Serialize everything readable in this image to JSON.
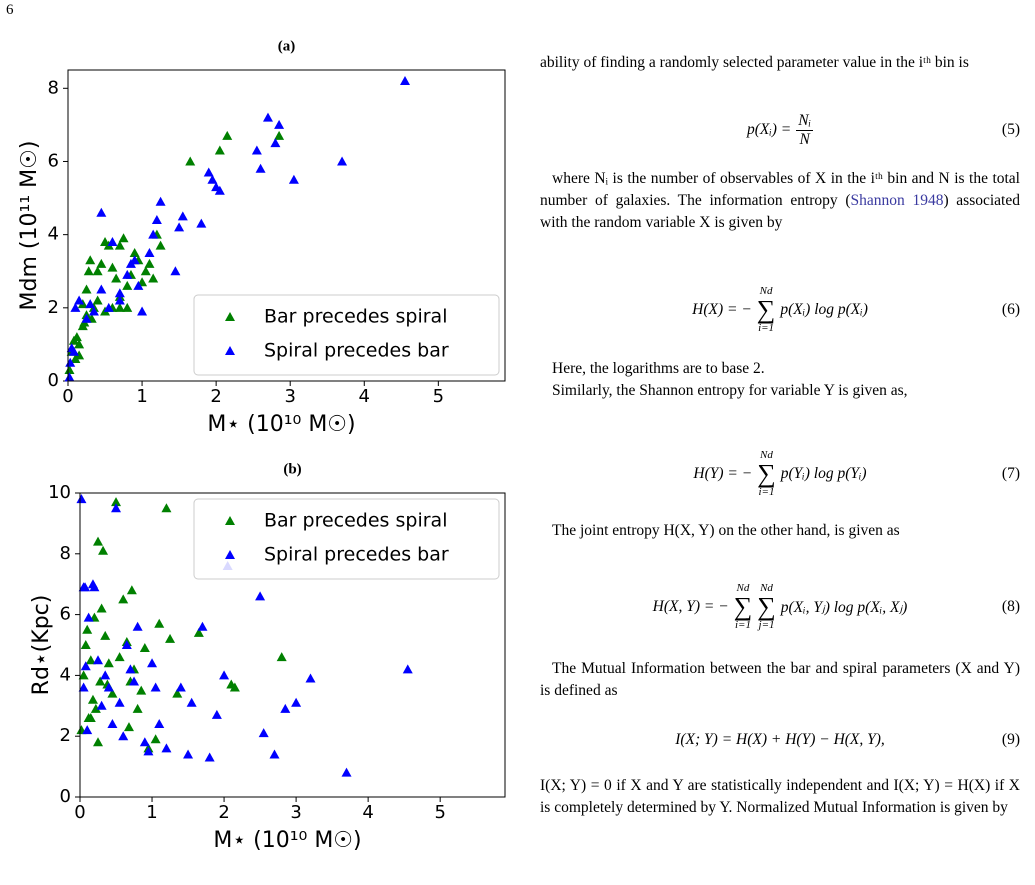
{
  "page_number": "6",
  "chart_data": [
    {
      "type": "scatter",
      "title": "(a)",
      "xlabel": "M⋆ (10¹⁰ M☉)",
      "ylabel": "Mdm (10¹¹ M☉)",
      "xlim": [
        0,
        5.9
      ],
      "ylim": [
        0,
        8.5
      ],
      "xticks": [
        0,
        1,
        2,
        3,
        4,
        5
      ],
      "yticks": [
        0,
        2,
        4,
        6,
        8
      ],
      "legend": "lower right",
      "series": [
        {
          "name": "Bar precedes spiral",
          "color": "#008000",
          "x": [
            0.02,
            0.05,
            0.08,
            0.1,
            0.12,
            0.15,
            0.2,
            0.22,
            0.25,
            0.25,
            0.28,
            0.3,
            0.32,
            0.35,
            0.4,
            0.45,
            0.5,
            0.55,
            0.6,
            0.65,
            0.7,
            0.7,
            0.75,
            0.8,
            0.8,
            0.85,
            0.9,
            0.95,
            1.0,
            1.05,
            1.1,
            1.15,
            1.2,
            1.25,
            1.65,
            2.05,
            2.15,
            2.85,
            0.6,
            0.7,
            0.5,
            0.2,
            0.15,
            0.4
          ],
          "values": [
            0.3,
            0.8,
            1.1,
            0.6,
            1.2,
            1.0,
            1.5,
            1.6,
            1.8,
            2.5,
            3.0,
            3.3,
            1.7,
            2.0,
            2.2,
            3.2,
            3.8,
            3.7,
            3.1,
            2.8,
            2.3,
            3.7,
            3.9,
            2.0,
            2.6,
            2.9,
            3.5,
            3.3,
            2.7,
            3.0,
            3.2,
            2.8,
            4.0,
            3.7,
            6.0,
            6.3,
            6.7,
            6.7,
            2.0,
            2.0,
            1.9,
            2.1,
            0.7,
            3.0
          ]
        },
        {
          "name": "Spiral precedes bar",
          "color": "#0000ff",
          "x": [
            0.02,
            0.03,
            0.05,
            0.08,
            0.1,
            0.15,
            0.25,
            0.3,
            0.35,
            0.45,
            0.45,
            0.55,
            0.6,
            0.7,
            0.7,
            0.8,
            0.9,
            0.95,
            1.0,
            1.15,
            1.2,
            1.25,
            1.45,
            1.5,
            1.55,
            1.8,
            1.9,
            1.95,
            2.0,
            2.05,
            2.55,
            2.6,
            2.7,
            2.85,
            2.8,
            3.05,
            3.7,
            4.55,
            0.85,
            1.1
          ],
          "values": [
            0.1,
            0.5,
            0.9,
            0.8,
            2.0,
            2.2,
            1.7,
            2.1,
            1.9,
            4.6,
            2.5,
            2.0,
            3.8,
            2.4,
            2.2,
            2.9,
            3.3,
            2.6,
            1.9,
            4.0,
            4.4,
            4.9,
            3.0,
            4.2,
            4.5,
            4.3,
            5.7,
            5.5,
            5.3,
            5.2,
            6.3,
            5.8,
            7.2,
            7.0,
            6.5,
            5.5,
            6.0,
            8.2,
            3.2,
            3.5
          ]
        }
      ]
    },
    {
      "type": "scatter",
      "title": "(b)",
      "xlabel": "M⋆ (10¹⁰ M☉)",
      "ylabel": "Rd⋆(Kpc)",
      "xlim": [
        0,
        5.9
      ],
      "ylim": [
        0,
        10
      ],
      "xticks": [
        0,
        1,
        2,
        3,
        4,
        5
      ],
      "yticks": [
        0,
        2,
        4,
        6,
        8,
        10
      ],
      "legend": "upper right",
      "series": [
        {
          "name": "Bar precedes spiral",
          "color": "#008000",
          "x": [
            0.02,
            0.05,
            0.08,
            0.1,
            0.12,
            0.15,
            0.18,
            0.2,
            0.22,
            0.25,
            0.28,
            0.3,
            0.32,
            0.35,
            0.38,
            0.4,
            0.45,
            0.5,
            0.55,
            0.6,
            0.65,
            0.68,
            0.7,
            0.72,
            0.75,
            0.8,
            0.85,
            0.9,
            0.95,
            1.05,
            1.1,
            1.2,
            1.25,
            1.35,
            1.65,
            2.1,
            2.15,
            2.8,
            0.25,
            0.15
          ],
          "values": [
            2.2,
            4.0,
            5.0,
            5.5,
            2.6,
            4.5,
            3.2,
            5.9,
            2.9,
            8.4,
            3.8,
            6.2,
            8.1,
            5.3,
            3.7,
            4.4,
            3.4,
            9.7,
            4.6,
            6.5,
            5.1,
            2.3,
            3.8,
            6.8,
            4.2,
            2.9,
            3.5,
            4.9,
            1.6,
            1.9,
            5.7,
            9.5,
            5.2,
            3.4,
            5.4,
            3.7,
            3.6,
            4.6,
            1.8,
            2.6
          ]
        },
        {
          "name": "Spiral precedes bar",
          "color": "#0000ff",
          "x": [
            0.02,
            0.05,
            0.07,
            0.05,
            0.08,
            0.1,
            0.12,
            0.18,
            0.2,
            0.25,
            0.3,
            0.35,
            0.4,
            0.45,
            0.5,
            0.55,
            0.6,
            0.65,
            0.7,
            0.75,
            0.8,
            0.9,
            0.95,
            1.0,
            1.05,
            1.1,
            1.2,
            1.4,
            1.5,
            1.55,
            1.7,
            1.8,
            1.9,
            2.0,
            2.05,
            2.5,
            2.55,
            2.7,
            2.85,
            3.0,
            3.2,
            3.7,
            4.55
          ],
          "values": [
            9.8,
            6.9,
            6.9,
            3.6,
            4.3,
            2.2,
            5.9,
            7.0,
            6.9,
            4.5,
            3.0,
            4.0,
            3.6,
            2.4,
            9.5,
            3.1,
            2.0,
            5.0,
            4.2,
            3.8,
            5.6,
            1.8,
            1.5,
            4.4,
            3.6,
            2.4,
            1.6,
            3.6,
            1.4,
            3.1,
            5.6,
            1.3,
            2.7,
            4.0,
            7.6,
            6.6,
            2.1,
            1.4,
            2.9,
            3.1,
            3.9,
            0.8,
            4.2
          ]
        }
      ]
    }
  ],
  "text": {
    "p1": "ability of finding a randomly selected parameter value in the iᵗʰ bin is",
    "eq5": {
      "lhs": "p(Xᵢ) =",
      "numerator": "Nᵢ",
      "denominator": "N",
      "number": "(5)"
    },
    "p2": {
      "before": "where Nᵢ is the number of observables of X in the iᵗʰ bin and N is the total number of galaxies. The information entropy (",
      "citation": "Shannon 1948",
      "after": ") associated with the random variable X is given by"
    },
    "eq6": {
      "lhs": "H(X) = −",
      "op": "∑",
      "upper": "Nd",
      "lower": "i=1",
      "rhs": "p(Xᵢ) log p(Xᵢ)",
      "number": "(6)"
    },
    "p3": "Here, the logarithms are to base 2.",
    "p4": "Similarly, the Shannon entropy for variable Y is given as,",
    "eq7": {
      "lhs": "H(Y) = −",
      "op": "∑",
      "upper": "Nd",
      "lower": "i=1",
      "rhs": "p(Yᵢ) log p(Yᵢ)",
      "number": "(7)"
    },
    "p5": "The joint entropy H(X, Y) on the other hand, is given as",
    "eq8": {
      "lhs": "H(X, Y) = −",
      "op": "∑",
      "upper1": "Nd",
      "lower1": "i=1",
      "upper2": "Nd",
      "lower2": "j=1",
      "rhs": "p(Xᵢ, Yⱼ) log p(Xᵢ, Xⱼ)",
      "number": "(8)"
    },
    "p6": "The Mutual Information between the bar and spiral parameters (X and Y) is defined as",
    "eq9": {
      "body": "I(X; Y) = H(X) + H(Y) − H(X, Y),",
      "number": "(9)"
    },
    "p7": "I(X; Y) = 0 if X and Y are statistically independent and I(X; Y) = H(X) if X is completely determined by Y. Normalized Mutual Information is given by"
  }
}
